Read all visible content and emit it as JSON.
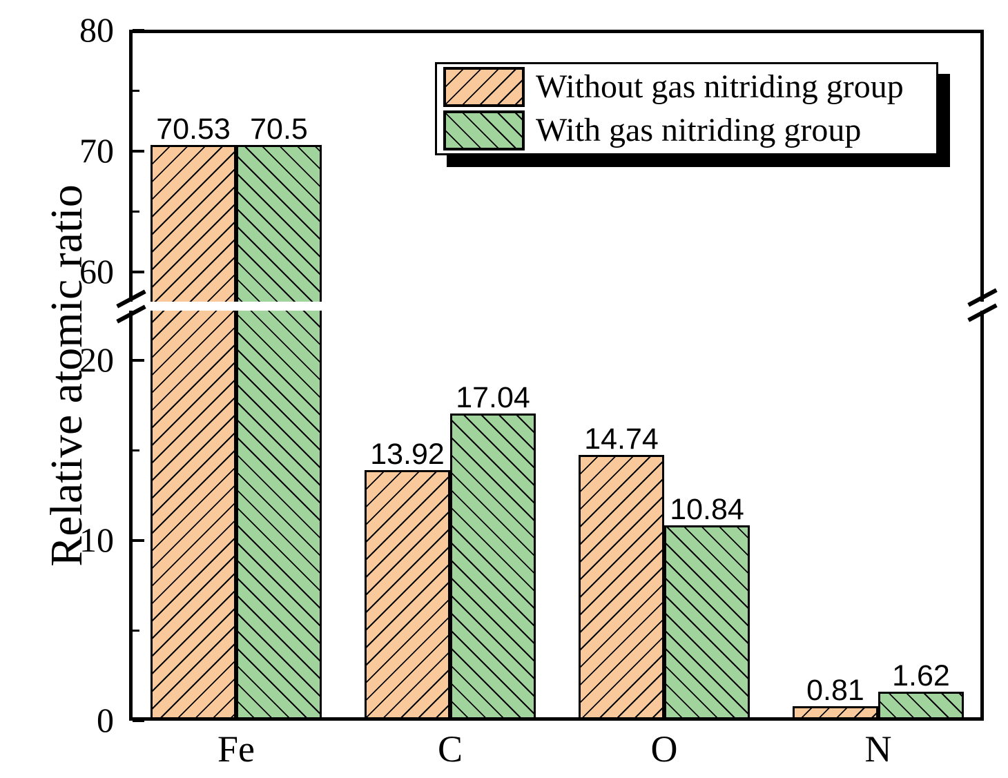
{
  "figure": {
    "background": "#ffffff"
  },
  "chart_data": {
    "type": "bar",
    "title": "",
    "xlabel": "",
    "ylabel": "Relative atomic ratio",
    "categories": [
      "Fe",
      "C",
      "O",
      "N"
    ],
    "series": [
      {
        "name": "Without gas nitriding group",
        "color": "#F9C89B",
        "hatch": "/",
        "values": [
          70.53,
          13.92,
          14.74,
          0.81
        ],
        "value_labels": [
          "70.53",
          "13.92",
          "14.74",
          "0.81"
        ]
      },
      {
        "name": "With gas nitriding group",
        "color": "#A1D49D",
        "hatch": "\\",
        "values": [
          70.5,
          17.04,
          10.84,
          1.62
        ],
        "value_labels": [
          "70.5",
          "17.04",
          "10.84",
          "1.62"
        ]
      }
    ],
    "y_axis": {
      "broken": true,
      "lower_segment": {
        "range": [
          0,
          23
        ],
        "major_ticks": [
          0,
          10,
          20
        ],
        "minor_ticks": [
          5,
          15
        ]
      },
      "upper_segment": {
        "range": [
          57,
          80
        ],
        "major_ticks": [
          60,
          70,
          80
        ],
        "minor_ticks": [
          65,
          75
        ]
      },
      "major_tick_labels": [
        "0",
        "10",
        "20",
        "60",
        "70",
        "80"
      ]
    },
    "legend": {
      "position": "upper center",
      "items": [
        "Without gas nitriding group",
        "With gas nitriding group"
      ]
    },
    "grid": false,
    "bar_edge_color": "#000000",
    "background": "#ffffff"
  }
}
